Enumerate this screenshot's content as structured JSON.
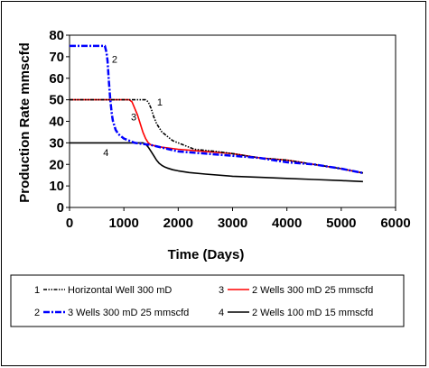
{
  "chart_data": {
    "type": "line",
    "xlabel": "Time (Days)",
    "ylabel": "Production Rate mmscfd",
    "xlim": [
      0,
      6000
    ],
    "ylim": [
      0,
      80
    ],
    "xticks": [
      "0",
      "1000",
      "2000",
      "3000",
      "4000",
      "5000",
      "6000"
    ],
    "yticks": [
      "0",
      "10",
      "20",
      "30",
      "40",
      "50",
      "60",
      "70",
      "80"
    ],
    "grid": false,
    "legend_position": "bottom",
    "series": [
      {
        "id": "1",
        "name": "Horizontal Well 300 mD",
        "color": "#000000",
        "style": "dash-dot-dot",
        "curve_label": "1",
        "label_pos": [
          1610,
          49
        ],
        "x": [
          0,
          1300,
          1400,
          1450,
          1500,
          1550,
          1600,
          1650,
          1700,
          1750,
          1800,
          1850,
          1900,
          2000,
          2100,
          2200,
          2300,
          2500,
          2700,
          3000,
          3500,
          4000,
          4500,
          5000,
          5400
        ],
        "y": [
          50,
          50,
          50,
          49,
          46,
          42,
          39,
          37,
          35,
          34,
          33,
          32,
          31,
          30,
          29,
          28,
          27,
          26.5,
          26,
          25,
          23,
          22,
          20,
          18,
          16
        ]
      },
      {
        "id": "2",
        "name": "3 Wells 300 mD 25 mmscfd",
        "color": "#0000ff",
        "style": "dash-dot",
        "curve_label": "2",
        "label_pos": [
          780,
          69
        ],
        "x": [
          0,
          650,
          680,
          700,
          720,
          750,
          780,
          800,
          850,
          900,
          1000,
          1100,
          1200,
          1500,
          2000,
          2500,
          3000,
          3500,
          4000,
          4500,
          5000,
          5400
        ],
        "y": [
          75,
          75,
          72,
          68,
          60,
          50,
          43,
          40,
          36,
          34,
          32,
          31,
          30,
          29,
          26,
          25,
          24,
          23,
          21,
          20,
          18,
          16
        ]
      },
      {
        "id": "3",
        "name": "2 Wells 300 mD 25 mmscfd",
        "color": "#ff0000",
        "style": "solid",
        "curve_label": "3",
        "label_pos": [
          1130,
          42
        ],
        "x": [
          0,
          1100,
          1150,
          1200,
          1250,
          1300,
          1350,
          1400,
          1450,
          1500,
          1700,
          2000,
          2500,
          3000,
          3500,
          4000,
          4500,
          5000,
          5400
        ],
        "y": [
          50,
          50,
          49,
          46,
          43,
          39,
          35,
          32,
          30,
          29,
          28,
          27,
          26,
          25,
          23,
          22,
          20,
          18,
          16
        ]
      },
      {
        "id": "4",
        "name": "2 Wells 100 mD 15 mmscfd",
        "color": "#000000",
        "style": "solid",
        "curve_label": "4",
        "label_pos": [
          620,
          25.5
        ],
        "x": [
          0,
          1350,
          1400,
          1450,
          1500,
          1550,
          1600,
          1650,
          1700,
          1750,
          1800,
          1900,
          2000,
          2200,
          2500,
          3000,
          3500,
          4000,
          4500,
          5000,
          5400
        ],
        "y": [
          30,
          30,
          29.5,
          28,
          26,
          24,
          22,
          20.5,
          19.5,
          18.8,
          18.3,
          17.5,
          17,
          16.2,
          15.5,
          14.5,
          14,
          13.5,
          13,
          12.5,
          12
        ]
      }
    ]
  }
}
